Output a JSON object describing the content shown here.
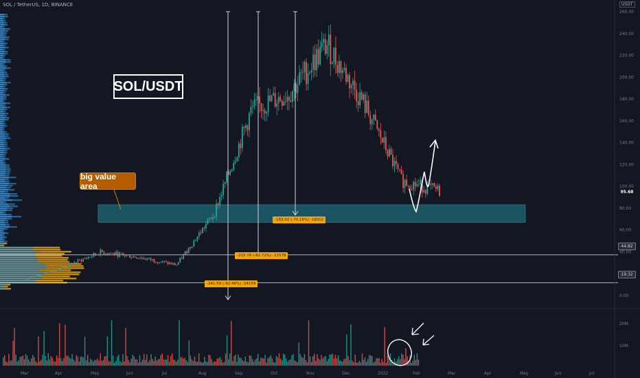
{
  "header": {
    "symbol_line": "SOL / TetherUS, 1D, BINANCE"
  },
  "price_axis_unit": "USDT",
  "chart_title": "SOL/USDT",
  "callout_label": "big value area",
  "colors": {
    "up": "#26a69a",
    "down": "#ef5350",
    "accent": "#f7a600",
    "zone": "#1d5e6b",
    "background": "#131722"
  },
  "measure_labels": [
    {
      "text": "-183.02 (-70.16%) -18302",
      "to": 85
    },
    {
      "text": "-215.78 (-82.71%) -21578",
      "to": 45
    },
    {
      "text": "-241.59 (-92.46%) -24159",
      "to": 20
    }
  ],
  "price_tags": {
    "last": "95.68",
    "level_1": "44.82",
    "level_2": "19.32"
  },
  "chart_data": {
    "type": "candlestick",
    "x_axis": {
      "ticks": [
        "Mar",
        "Apr",
        "May",
        "Jun",
        "Jul",
        "Aug",
        "Sep",
        "Oct",
        "Nov",
        "Dec",
        "2022",
        "Feb",
        "Mar",
        "Apr",
        "May",
        "Jun",
        "Jul"
      ]
    },
    "y_axis": {
      "ticks": [
        "0.00",
        "20.00",
        "40.00",
        "60.00",
        "80.00",
        "100.00",
        "120.00",
        "140.00",
        "160.00",
        "180.00",
        "200.00",
        "220.00",
        "240.00",
        "260.00"
      ],
      "range": [
        -7,
        262
      ],
      "scale": "linear"
    },
    "volume_axis": {
      "ticks": [
        "20M",
        "10M"
      ]
    },
    "price_path": [
      {
        "month": "Mar 2021",
        "close": 15
      },
      {
        "month": "Apr 2021",
        "close": 26
      },
      {
        "month": "May 2021",
        "close": 40
      },
      {
        "month": "Jun 2021",
        "close": 35
      },
      {
        "month": "Jul 2021",
        "close": 28
      },
      {
        "month": "Aug 2021",
        "close": 75
      },
      {
        "month": "Sep 2021",
        "close": 170
      },
      {
        "month": "Oct 2021",
        "close": 185
      },
      {
        "month": "Nov 2021",
        "close": 230
      },
      {
        "month": "Dec 2021",
        "close": 175
      },
      {
        "month": "Jan 2022",
        "close": 105
      },
      {
        "month": "Feb 2022",
        "close": 95.68
      }
    ],
    "highlight_zone": {
      "from": 67,
      "to": 85
    },
    "horizontal_levels": [
      44.82,
      19.32
    ],
    "peak": 260,
    "last_price": 95.68
  }
}
